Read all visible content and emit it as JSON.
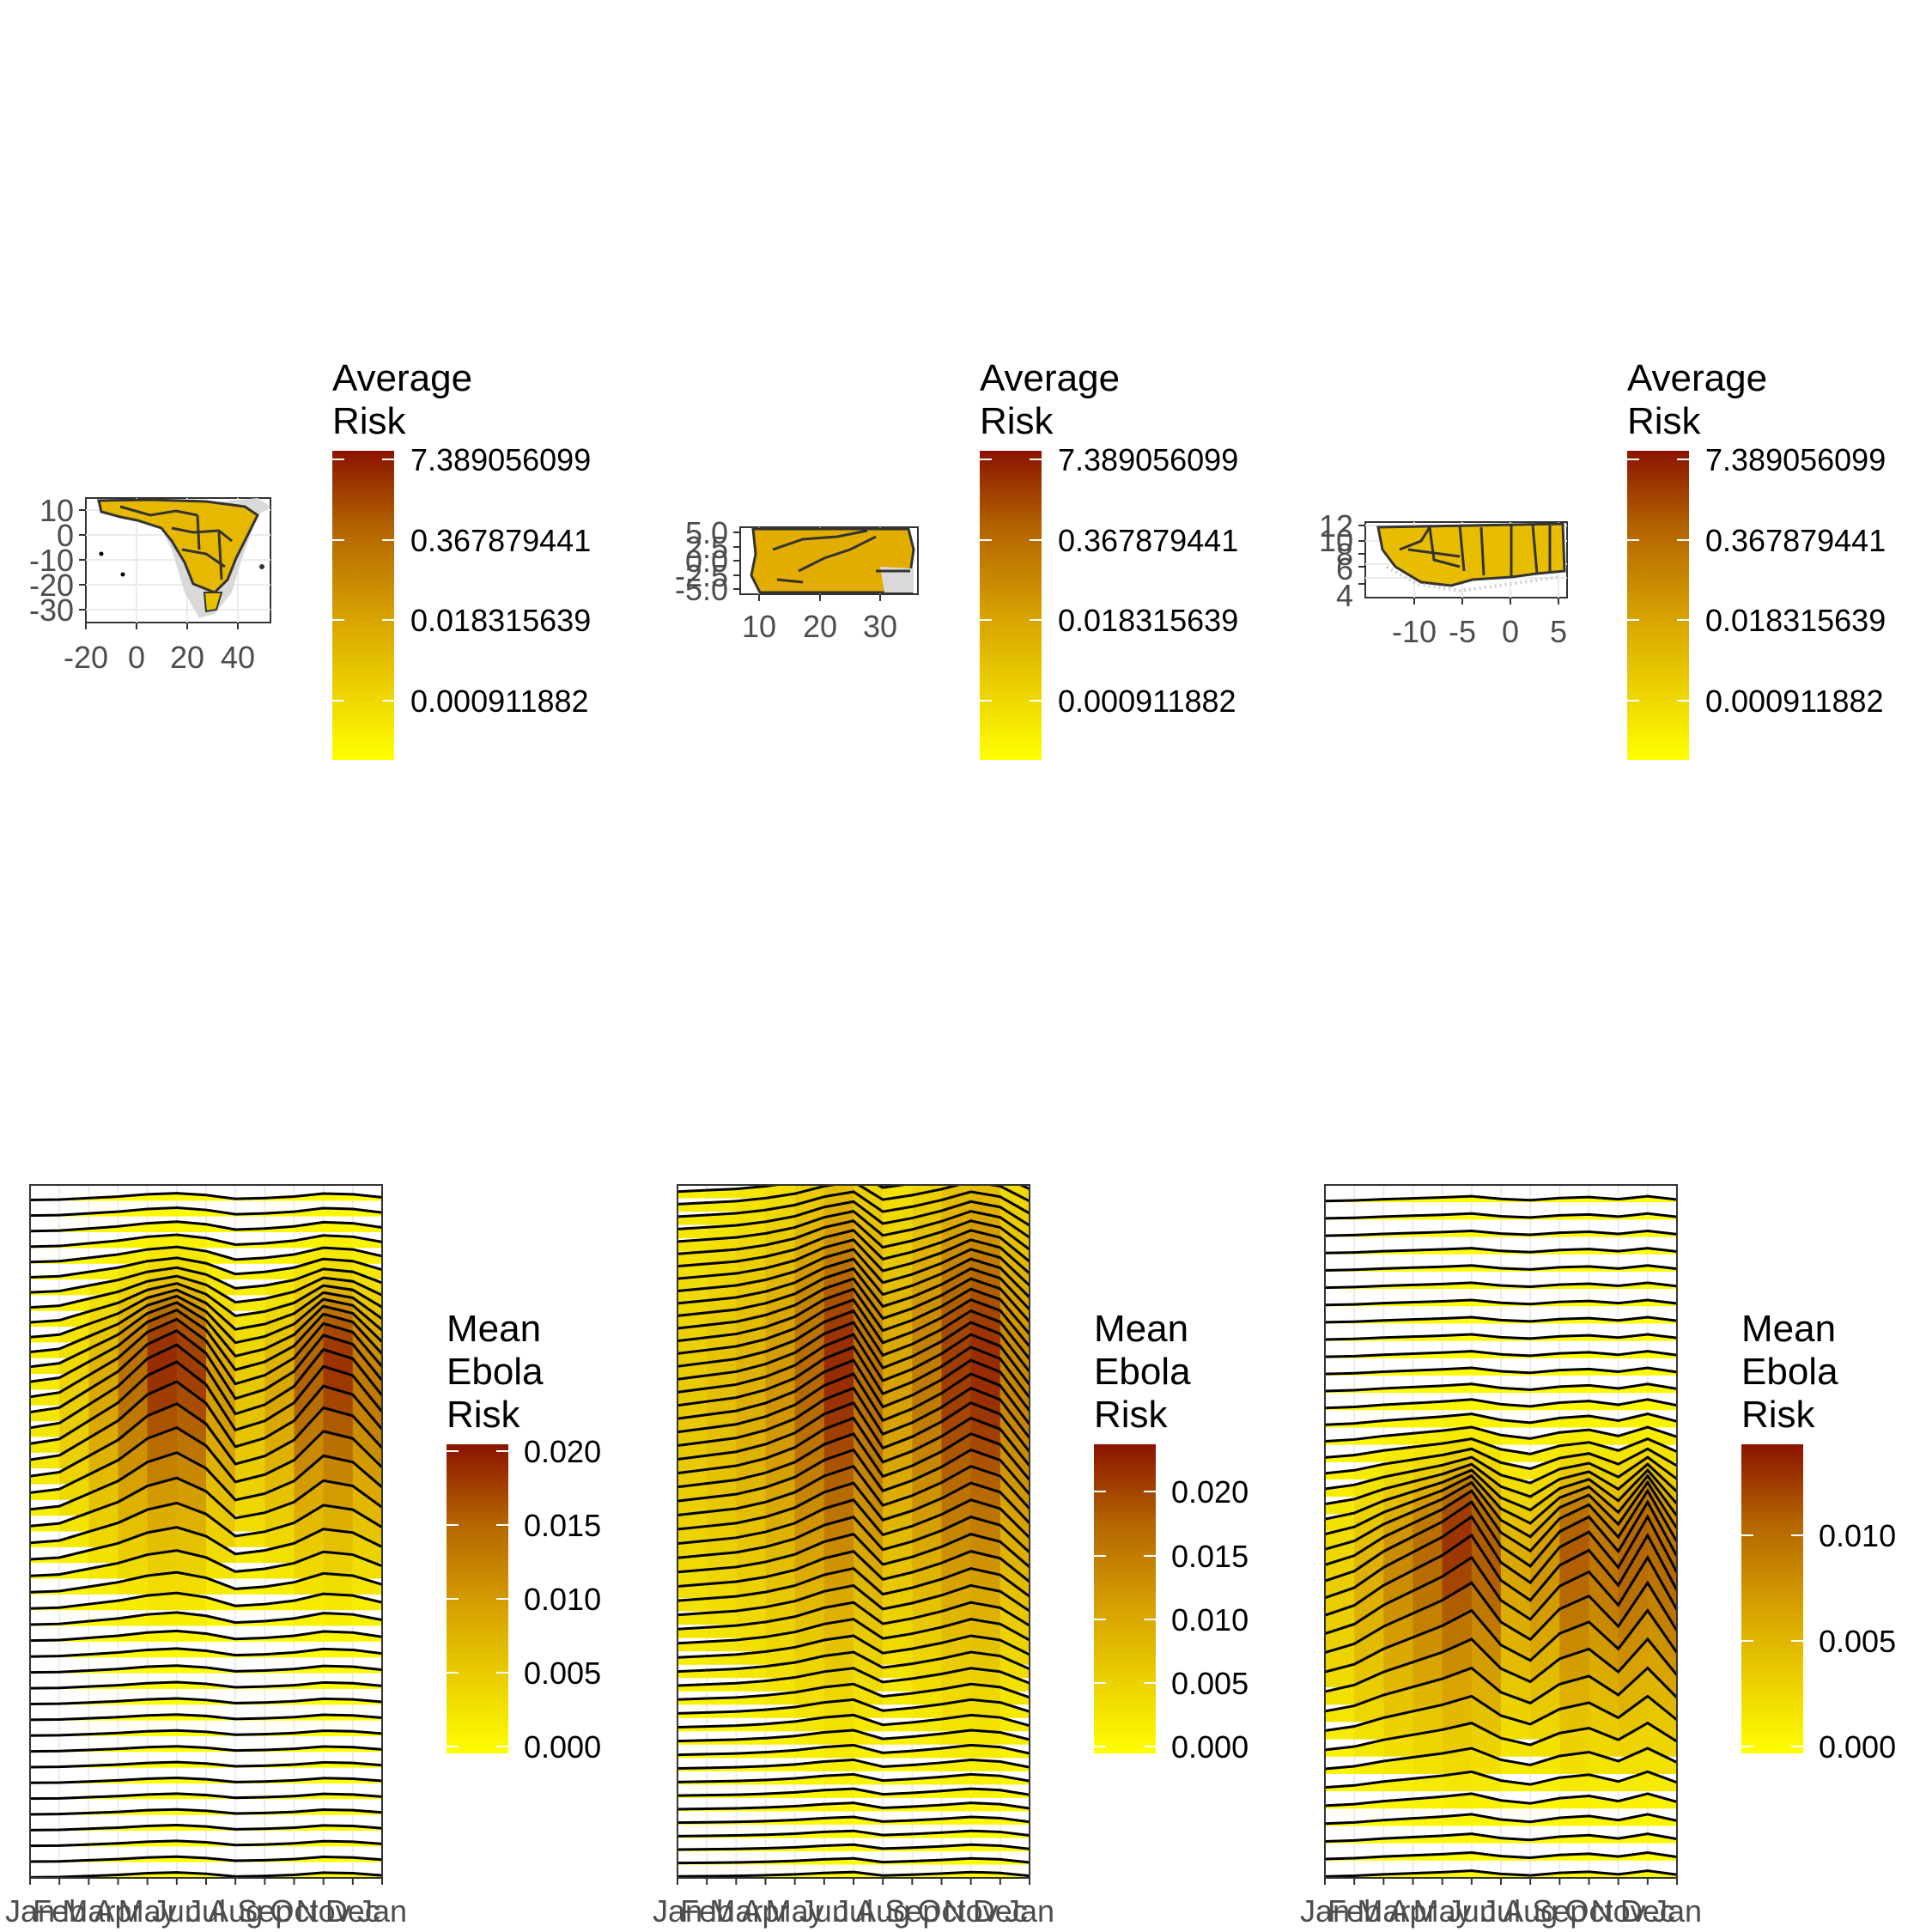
{
  "palette": {
    "low": "#ffff00",
    "mid": "#d49a00",
    "high": "#8b1300",
    "border": "#333333",
    "grid": "#ebebeb",
    "land_missing": "#d9d9d9"
  },
  "chart_data": [
    {
      "type": "map",
      "legend": {
        "title": [
          "Average",
          "Risk"
        ],
        "scale": "log",
        "labels": [
          "7.389056099",
          "0.367879441",
          "0.018315639",
          "0.000911882"
        ]
      },
      "x_ticks": [
        "-20",
        "0",
        "20",
        "40"
      ],
      "y_ticks": [
        "10",
        "0",
        "-10",
        "-20",
        "-30"
      ],
      "xlim": [
        -26,
        52
      ],
      "ylim": [
        -35,
        16
      ]
    },
    {
      "type": "map",
      "legend": {
        "title": [
          "Average",
          "Risk"
        ],
        "scale": "log",
        "labels": [
          "7.389056099",
          "0.367879441",
          "0.018315639",
          "0.000911882"
        ]
      },
      "x_ticks": [
        "10",
        "20",
        "30"
      ],
      "y_ticks": [
        "5.0",
        "2.5",
        "0.0",
        "-2.5",
        "-5.0"
      ],
      "xlim": [
        6,
        36
      ],
      "ylim": [
        -6,
        6
      ]
    },
    {
      "type": "map",
      "legend": {
        "title": [
          "Average",
          "Risk"
        ],
        "scale": "log",
        "labels": [
          "7.389056099",
          "0.367879441",
          "0.018315639",
          "0.000911882"
        ]
      },
      "x_ticks": [
        "-10",
        "-5",
        "0",
        "5"
      ],
      "y_ticks": [
        "12",
        "10",
        "8",
        "6",
        "4"
      ],
      "xlim": [
        -15,
        6
      ],
      "ylim": [
        4,
        13
      ]
    },
    {
      "type": "area",
      "subtype": "ridgeline",
      "months": [
        "Jan",
        "Feb",
        "Mar",
        "Apr",
        "May",
        "Jun",
        "Jul",
        "Aug",
        "Sep",
        "Oct",
        "Nov",
        "Dec",
        "Jan"
      ],
      "legend": {
        "title": [
          "Mean",
          "Ebola",
          "Risk"
        ],
        "labels": [
          "0.020",
          "0.015",
          "0.010",
          "0.005",
          "0.000"
        ],
        "range": [
          0,
          0.021
        ]
      },
      "ridges": 44,
      "seasonal_profile": [
        0.1,
        0.15,
        0.35,
        0.55,
        0.85,
        1.0,
        0.75,
        0.25,
        0.35,
        0.55,
        0.95,
        0.85,
        0.45
      ],
      "peak_risk": 0.021
    },
    {
      "type": "area",
      "subtype": "ridgeline",
      "months": [
        "Jan",
        "Feb",
        "Mar",
        "Apr",
        "May",
        "Jun",
        "Jul",
        "Aug",
        "Sep",
        "Oct",
        "Nov",
        "Dec",
        "Jan"
      ],
      "legend": {
        "title": [
          "Mean",
          "Ebola",
          "Risk"
        ],
        "labels": [
          "0.020",
          "0.015",
          "0.010",
          "0.005",
          "0.000"
        ],
        "range": [
          0,
          0.024
        ]
      },
      "ridges": 52,
      "seasonal_profile": [
        0.25,
        0.3,
        0.35,
        0.45,
        0.6,
        0.85,
        1.0,
        0.4,
        0.55,
        0.75,
        1.0,
        0.85,
        0.35
      ],
      "peak_risk": 0.024
    },
    {
      "type": "area",
      "subtype": "ridgeline",
      "months": [
        "Jan",
        "Feb",
        "Mar",
        "Apr",
        "May",
        "Jun",
        "Jul",
        "Aug",
        "Sep",
        "Oct",
        "Nov",
        "Dec",
        "Jan"
      ],
      "legend": {
        "title": [
          "Mean",
          "Ebola",
          "Risk"
        ],
        "labels": [
          "0.010",
          "0.005",
          "0.000"
        ],
        "range": [
          0,
          0.0145
        ]
      },
      "ridges": 40,
      "seasonal_profile": [
        0.2,
        0.3,
        0.5,
        0.65,
        0.8,
        1.0,
        0.55,
        0.35,
        0.7,
        0.85,
        0.5,
        1.0,
        0.45
      ],
      "peak_risk": 0.0145
    }
  ]
}
